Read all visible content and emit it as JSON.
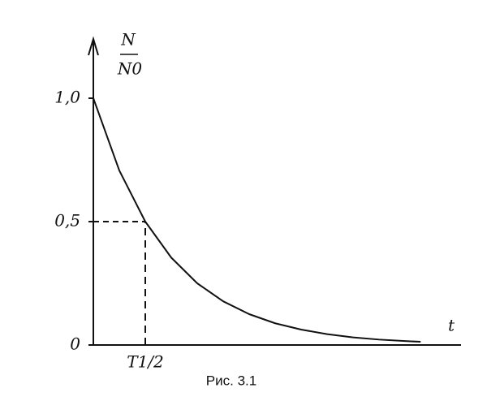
{
  "chart_data": {
    "type": "line",
    "caption": "Рис. 3.1",
    "ylabel": {
      "numerator": "N",
      "denominator": "N0"
    },
    "xlabel": "t",
    "x": [
      0,
      0.5,
      1,
      1.5,
      2,
      2.5,
      3,
      3.5,
      4,
      4.5,
      5,
      5.5,
      6,
      6.3
    ],
    "values": [
      1,
      0.707,
      0.5,
      0.354,
      0.25,
      0.177,
      0.125,
      0.088,
      0.0625,
      0.044,
      0.031,
      0.022,
      0.016,
      0.013
    ],
    "color": "#111111",
    "xlim": [
      0,
      7
    ],
    "ylim": [
      0,
      1.25
    ],
    "xticks": [
      {
        "value": 1,
        "label": "T1/2"
      }
    ],
    "yticks": [
      {
        "value": 0,
        "label": "0"
      },
      {
        "value": 0.5,
        "label": "0,5"
      },
      {
        "value": 1,
        "label": "1,0"
      }
    ],
    "guides": true
  }
}
